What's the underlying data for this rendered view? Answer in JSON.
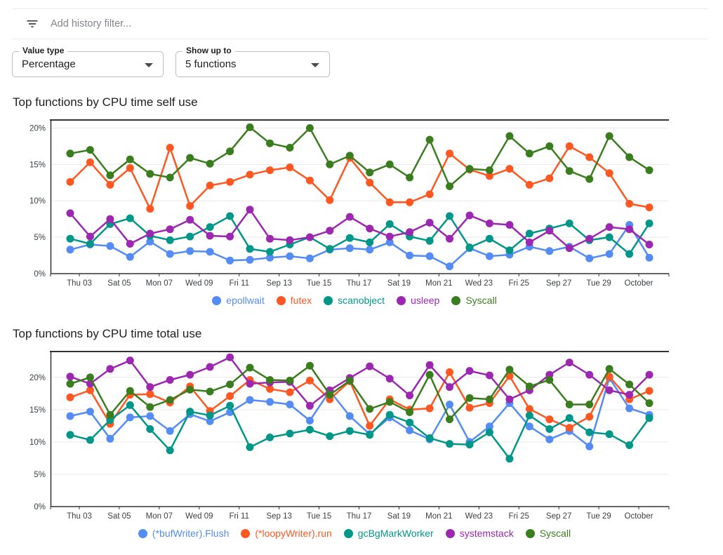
{
  "header": {
    "filter_icon": "filter-list-icon",
    "filter_placeholder": "Add history filter..."
  },
  "controls": {
    "dropdown_icon": "caret-down-icon",
    "value_type": {
      "label": "Value type",
      "value": "Percentage"
    },
    "show_up_to": {
      "label": "Show up to",
      "value": "5 functions"
    }
  },
  "palette": {
    "blue": "#548BF4",
    "orange": "#FF5722",
    "teal": "#009688",
    "purple": "#9C27B0",
    "green": "#3A7D1E"
  },
  "chart_data": [
    {
      "type": "line",
      "title": "Top functions by CPU time self use",
      "xlabel": "",
      "ylabel": "",
      "grid": true,
      "legend_position": "bottom",
      "ylim": [
        0,
        21.2
      ],
      "y_tick_values": [
        0,
        5,
        10,
        15,
        20
      ],
      "y_tick_labels": [
        "0%",
        "5%",
        "10%",
        "15%",
        "20%"
      ],
      "x_labels": [
        "Thu 03",
        "Sat 05",
        "Mon 07",
        "Wed 09",
        "Fri 11",
        "Sep 13",
        "Tue 15",
        "Thu 17",
        "Sat 19",
        "Mon 21",
        "Wed 23",
        "Fri 25",
        "Sep 27",
        "Tue 29",
        "October"
      ],
      "series": [
        {
          "name": "epollwait",
          "color": "#548BF4",
          "values": [
            3.3,
            4.0,
            3.8,
            2.3,
            4.4,
            2.7,
            3.1,
            3.0,
            1.8,
            1.9,
            2.2,
            2.4,
            2.1,
            3.3,
            3.5,
            3.3,
            4.3,
            2.5,
            2.4,
            1.0,
            3.5,
            2.4,
            2.6,
            3.7,
            3.1,
            3.7,
            2.1,
            2.7,
            6.7,
            2.2
          ]
        },
        {
          "name": "futex",
          "color": "#FF5722",
          "values": [
            12.6,
            15.3,
            12.2,
            14.5,
            8.9,
            17.3,
            9.3,
            12.1,
            12.6,
            13.6,
            14.2,
            14.6,
            12.8,
            10.1,
            15.9,
            12.5,
            9.8,
            9.8,
            10.9,
            16.5,
            14.3,
            13.4,
            14.4,
            12.2,
            13.1,
            17.5,
            16.0,
            13.8,
            9.6,
            9.1
          ]
        },
        {
          "name": "scanobject",
          "color": "#009688",
          "values": [
            4.8,
            4.1,
            6.8,
            7.6,
            5.2,
            4.6,
            5.1,
            6.4,
            7.9,
            3.4,
            3.0,
            4.0,
            5.0,
            3.4,
            4.9,
            4.3,
            6.8,
            5.1,
            4.5,
            7.9,
            3.6,
            4.8,
            3.2,
            5.5,
            6.2,
            6.9,
            4.6,
            5.0,
            2.7,
            6.9
          ]
        },
        {
          "name": "usleep",
          "color": "#9C27B0",
          "values": [
            8.3,
            5.1,
            7.5,
            4.1,
            5.5,
            6.1,
            7.4,
            5.2,
            5.1,
            8.8,
            4.8,
            4.6,
            5.0,
            5.9,
            7.8,
            6.2,
            5.1,
            5.7,
            7.0,
            4.8,
            8.0,
            6.9,
            6.7,
            4.3,
            5.9,
            3.5,
            4.8,
            6.4,
            6.1,
            4.0
          ]
        },
        {
          "name": "Syscall",
          "color": "#3A7D1E",
          "values": [
            16.5,
            17.0,
            13.5,
            15.7,
            13.7,
            13.2,
            15.9,
            15.1,
            16.8,
            20.1,
            17.9,
            17.3,
            20.0,
            15.0,
            16.2,
            13.9,
            15.0,
            13.2,
            18.4,
            12.0,
            14.4,
            14.2,
            18.9,
            16.5,
            17.5,
            14.1,
            13.0,
            18.9,
            16.0,
            14.2
          ]
        }
      ]
    },
    {
      "type": "line",
      "title": "Top functions by CPU time total use",
      "xlabel": "",
      "ylabel": "",
      "grid": true,
      "legend_position": "bottom",
      "ylim": [
        0,
        24.1
      ],
      "y_tick_values": [
        0,
        5,
        10,
        15,
        20
      ],
      "y_tick_labels": [
        "0%",
        "5%",
        "10%",
        "15%",
        "20%"
      ],
      "x_labels": [
        "Thu 03",
        "Sat 05",
        "Mon 07",
        "Wed 09",
        "Fri 11",
        "Sep 13",
        "Tue 15",
        "Thu 17",
        "Sat 19",
        "Mon 21",
        "Wed 23",
        "Fri 25",
        "Sep 27",
        "Tue 29",
        "October"
      ],
      "series": [
        {
          "name": "(*bufWriter).Flush",
          "color": "#548BF4",
          "values": [
            14.0,
            14.7,
            10.5,
            13.8,
            14.0,
            11.7,
            14.3,
            13.2,
            14.6,
            16.5,
            16.2,
            15.8,
            13.3,
            17.9,
            14.0,
            11.2,
            13.8,
            11.8,
            10.4,
            15.8,
            10.0,
            12.4,
            16.0,
            12.4,
            10.4,
            11.7,
            9.3,
            19.9,
            15.2,
            14.2
          ]
        },
        {
          "name": "(*loopyWriter).run",
          "color": "#FF5722",
          "values": [
            16.9,
            18.0,
            12.8,
            17.3,
            17.4,
            16.1,
            18.6,
            14.8,
            17.1,
            19.6,
            18.2,
            17.7,
            19.5,
            16.6,
            19.4,
            12.5,
            16.6,
            15.0,
            15.2,
            20.8,
            15.3,
            16.0,
            20.2,
            15.1,
            13.5,
            12.2,
            13.9,
            20.1,
            16.6,
            17.9
          ]
        },
        {
          "name": "gcBgMarkWorker",
          "color": "#009688",
          "values": [
            11.1,
            10.3,
            13.4,
            15.7,
            12.0,
            8.7,
            14.7,
            14.1,
            15.6,
            9.2,
            10.7,
            11.3,
            11.9,
            10.9,
            11.7,
            11.1,
            14.2,
            13.0,
            10.6,
            9.7,
            9.6,
            11.5,
            7.4,
            14.1,
            12.0,
            13.7,
            11.5,
            11.2,
            9.5,
            13.7
          ]
        },
        {
          "name": "systemstack",
          "color": "#9C27B0",
          "values": [
            20.1,
            19.0,
            21.3,
            22.6,
            18.5,
            19.6,
            20.4,
            21.6,
            23.1,
            19.0,
            19.2,
            19.3,
            15.6,
            18.0,
            19.9,
            21.7,
            19.8,
            17.2,
            21.9,
            18.5,
            21.0,
            20.3,
            16.6,
            18.0,
            20.4,
            22.3,
            20.4,
            18.0,
            17.3,
            20.4
          ]
        },
        {
          "name": "Syscall",
          "color": "#3A7D1E",
          "values": [
            19.0,
            20.0,
            14.2,
            17.9,
            15.4,
            16.5,
            18.1,
            17.8,
            18.9,
            21.5,
            19.6,
            19.5,
            21.8,
            17.3,
            19.5,
            15.1,
            16.2,
            14.6,
            20.4,
            13.5,
            16.8,
            16.6,
            21.2,
            18.6,
            19.6,
            15.8,
            15.8,
            21.3,
            18.9,
            16.0
          ]
        }
      ]
    }
  ]
}
